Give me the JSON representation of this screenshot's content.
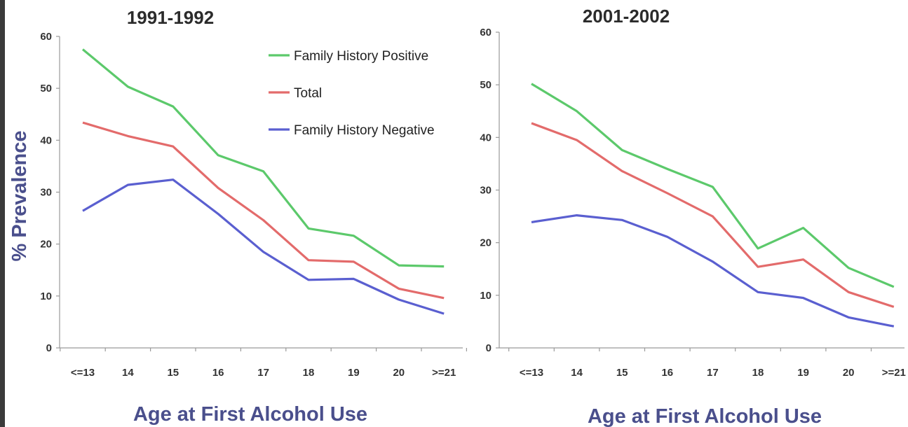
{
  "ylabel": "% Prevalence",
  "colors": {
    "fh_positive": "#5cc96b",
    "total": "#e36b6b",
    "fh_negative": "#5a5fd0"
  },
  "chart_data": [
    {
      "type": "line",
      "title": "1991-1992",
      "xlabel": "Age at First Alcohol Use",
      "ylabel": "% Prevalence",
      "categories": [
        "<=13",
        "14",
        "15",
        "16",
        "17",
        "18",
        "19",
        "20",
        ">=21"
      ],
      "ylim": [
        0,
        60
      ],
      "yticks": [
        0,
        10,
        20,
        30,
        40,
        50,
        60
      ],
      "legend": "top-right",
      "grid": false,
      "series": [
        {
          "name": "Family History Positive",
          "color": "#5cc96b",
          "values": [
            57.5,
            50.3,
            46.5,
            37.1,
            34.0,
            23.0,
            21.6,
            15.9,
            15.7
          ]
        },
        {
          "name": "Total",
          "color": "#e36b6b",
          "values": [
            43.4,
            40.8,
            38.8,
            30.8,
            24.6,
            16.9,
            16.6,
            11.4,
            9.6
          ]
        },
        {
          "name": "Family History Negative",
          "color": "#5a5fd0",
          "values": [
            26.4,
            31.4,
            32.4,
            25.8,
            18.5,
            13.1,
            13.3,
            9.3,
            6.6
          ]
        }
      ]
    },
    {
      "type": "line",
      "title": "2001-2002",
      "xlabel": "Age at First Alcohol Use",
      "categories": [
        "<=13",
        "14",
        "15",
        "16",
        "17",
        "18",
        "19",
        "20",
        ">=21"
      ],
      "ylim": [
        0,
        60
      ],
      "yticks": [
        0,
        10,
        20,
        30,
        40,
        50,
        60
      ],
      "grid": false,
      "series": [
        {
          "name": "Family History Positive",
          "color": "#5cc96b",
          "values": [
            50.2,
            45.0,
            37.6,
            34.0,
            30.6,
            18.9,
            22.8,
            15.2,
            11.6
          ]
        },
        {
          "name": "Total",
          "color": "#e36b6b",
          "values": [
            42.7,
            39.5,
            33.6,
            29.4,
            25.0,
            15.4,
            16.8,
            10.6,
            7.8
          ]
        },
        {
          "name": "Family History Negative",
          "color": "#5a5fd0",
          "values": [
            23.9,
            25.2,
            24.3,
            21.1,
            16.4,
            10.6,
            9.5,
            5.8,
            4.1
          ]
        }
      ]
    }
  ]
}
